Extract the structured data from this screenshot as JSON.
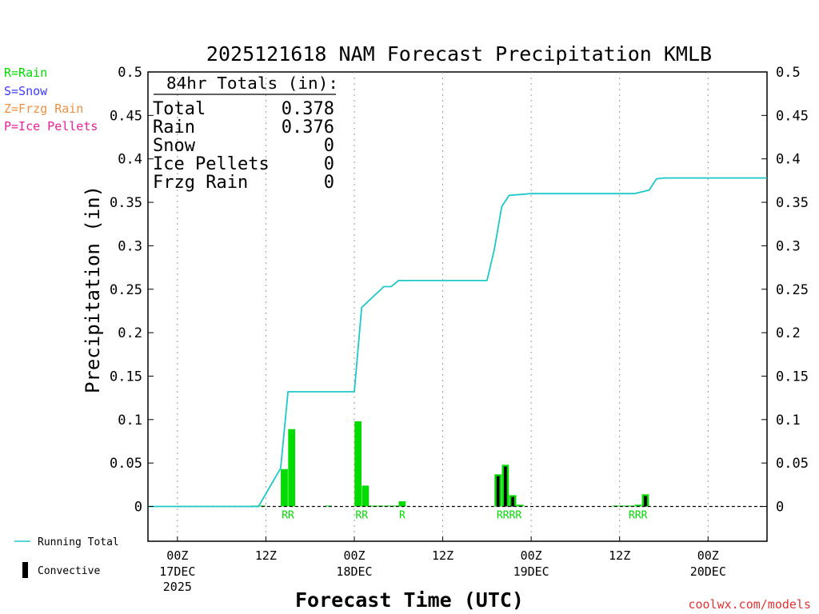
{
  "chart_data": {
    "type": "bar",
    "title": "2025121618 NAM Forecast Precipitation KMLB",
    "xlabel": "Forecast Time (UTC)",
    "ylabel": "Precipitation (in)",
    "ylim": [
      -0.04,
      0.5
    ],
    "xlim": [
      -4,
      80
    ],
    "y_ticks": [
      0,
      0.05,
      0.1,
      0.15,
      0.2,
      0.25,
      0.3,
      0.35,
      0.4,
      0.45,
      0.5
    ],
    "y_tick_labels": [
      "0",
      "0.05",
      "0.1",
      "0.15",
      "0.2",
      "0.25",
      "0.3",
      "0.35",
      "0.4",
      "0.45",
      "0.5"
    ],
    "x_note": "x values are hours after 00Z 17DEC 2025",
    "x_ticks": [
      {
        "x": 0,
        "line1": "00Z",
        "line2": "17DEC",
        "line3": "2025"
      },
      {
        "x": 12,
        "line1": "12Z",
        "line2": "",
        "line3": ""
      },
      {
        "x": 24,
        "line1": "00Z",
        "line2": "18DEC",
        "line3": ""
      },
      {
        "x": 36,
        "line1": "12Z",
        "line2": "",
        "line3": ""
      },
      {
        "x": 48,
        "line1": "00Z",
        "line2": "19DEC",
        "line3": ""
      },
      {
        "x": 60,
        "line1": "12Z",
        "line2": "",
        "line3": ""
      },
      {
        "x": 72,
        "line1": "00Z",
        "line2": "20DEC",
        "line3": ""
      }
    ],
    "bars": [
      {
        "x": 10.5,
        "value": 0.001,
        "convective": 0
      },
      {
        "x": 11.5,
        "value": 0.001,
        "convective": 0
      },
      {
        "x": 14.5,
        "value": 0.043,
        "convective": 0
      },
      {
        "x": 15.5,
        "value": 0.089,
        "convective": 0
      },
      {
        "x": 20.5,
        "value": 0.001,
        "convective": 0
      },
      {
        "x": 24.5,
        "value": 0.098,
        "convective": 0
      },
      {
        "x": 25.5,
        "value": 0.024,
        "convective": 0
      },
      {
        "x": 26.5,
        "value": 0.001,
        "convective": 0
      },
      {
        "x": 27.5,
        "value": 0.001,
        "convective": 0
      },
      {
        "x": 28.5,
        "value": 0.001,
        "convective": 0
      },
      {
        "x": 29.5,
        "value": 0.001,
        "convective": 0
      },
      {
        "x": 30.5,
        "value": 0.006,
        "convective": 0
      },
      {
        "x": 43.5,
        "value": 0.037,
        "convective": 0.035
      },
      {
        "x": 44.5,
        "value": 0.048,
        "convective": 0.046
      },
      {
        "x": 45.5,
        "value": 0.013,
        "convective": 0.011
      },
      {
        "x": 46.5,
        "value": 0.002,
        "convective": 0
      },
      {
        "x": 59.5,
        "value": 0.001,
        "convective": 0
      },
      {
        "x": 60.5,
        "value": 0.001,
        "convective": 0
      },
      {
        "x": 61.5,
        "value": 0.001,
        "convective": 0
      },
      {
        "x": 62.5,
        "value": 0.002,
        "convective": 0
      },
      {
        "x": 63.5,
        "value": 0.014,
        "convective": 0.012
      }
    ],
    "type_labels": [
      {
        "x": 15,
        "text": "RR"
      },
      {
        "x": 25,
        "text": "RR"
      },
      {
        "x": 30.5,
        "text": "R"
      },
      {
        "x": 45,
        "text": "RRRR"
      },
      {
        "x": 62.5,
        "text": "RRR"
      }
    ],
    "running_total": {
      "name": "Running Total",
      "x": [
        -4,
        11,
        14,
        15,
        20,
        22,
        24,
        25,
        28,
        29,
        30,
        42,
        43,
        44,
        45,
        48,
        58,
        60,
        62,
        64,
        65,
        66,
        80
      ],
      "values": [
        0,
        0,
        0.044,
        0.132,
        0.132,
        0.132,
        0.132,
        0.229,
        0.253,
        0.253,
        0.26,
        0.26,
        0.296,
        0.345,
        0.358,
        0.36,
        0.36,
        0.36,
        0.36,
        0.364,
        0.377,
        0.378,
        0.378
      ]
    },
    "legend": {
      "rain": "R=Rain",
      "snow": "S=Snow",
      "frzg": "Z=Frzg Rain",
      "ice": "P=Ice Pellets",
      "running_total": "Running Total",
      "convective": "Convective"
    },
    "totals": {
      "header": "84hr Totals (in):",
      "rows": [
        {
          "label": "Total",
          "value": "0.378"
        },
        {
          "label": "Rain",
          "value": "0.376"
        },
        {
          "label": "Snow",
          "value": "0"
        },
        {
          "label": "Ice Pellets",
          "value": "0"
        },
        {
          "label": "Frzg Rain",
          "value": "0"
        }
      ]
    },
    "credit": "coolwx.com/models"
  },
  "colors": {
    "rain": "#00dc00",
    "snow": "#3c3cff",
    "frzg": "#f09040",
    "ice": "#e6209a",
    "running_total": "#1ec8c8",
    "convective": "#000000",
    "credit": "#e63232",
    "axis": "#000000",
    "grid": "#999999"
  }
}
